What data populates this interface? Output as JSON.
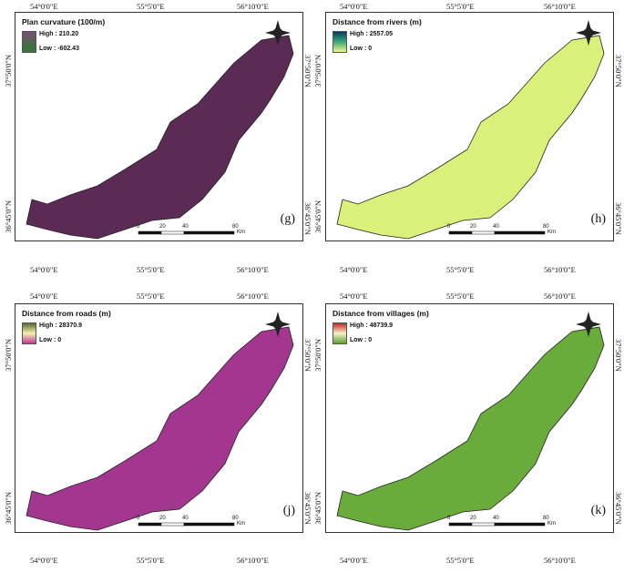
{
  "coords": {
    "lon_left": "54°0'0\"E",
    "lon_mid": "55°5'0\"E",
    "lon_right": "56°10'0\"E",
    "lat_top": "37°50'0\"N",
    "lat_bottom": "36°45'0\"N"
  },
  "scalebar": {
    "ticks": [
      "0",
      "20",
      "40",
      "80"
    ],
    "unit": "Km"
  },
  "panels": [
    {
      "id": "g",
      "title": "Plan curvature (100/m)",
      "high": "High : 210.20",
      "low": "Low : -602.43",
      "label": "(g)",
      "fill": "#5b2a55",
      "legend_top": "#7a4d74",
      "legend_bottom": "#2e7d32"
    },
    {
      "id": "h",
      "title": "Distance from rivers (m)",
      "high": "High : 2557.05",
      "low": "Low : 0",
      "label": "(h)",
      "fill": "#d9f07a",
      "legend_top": "#0c3b66",
      "legend_bottom": "#f2f58a"
    },
    {
      "id": "j",
      "title": "Distance from roads (m)",
      "high": "High : 28370.9",
      "low": "Low : 0",
      "label": "(j)",
      "fill": "#a3378f",
      "legend_top": "#556b2f",
      "legend_bottom": "#c2379a"
    },
    {
      "id": "k",
      "title": "Distance from villages (m)",
      "high": "High : 48739.9",
      "low": "Low : 0",
      "label": "(k)",
      "fill": "#6aac3c",
      "legend_top": "#c62828",
      "legend_bottom": "#5aa02c"
    }
  ]
}
